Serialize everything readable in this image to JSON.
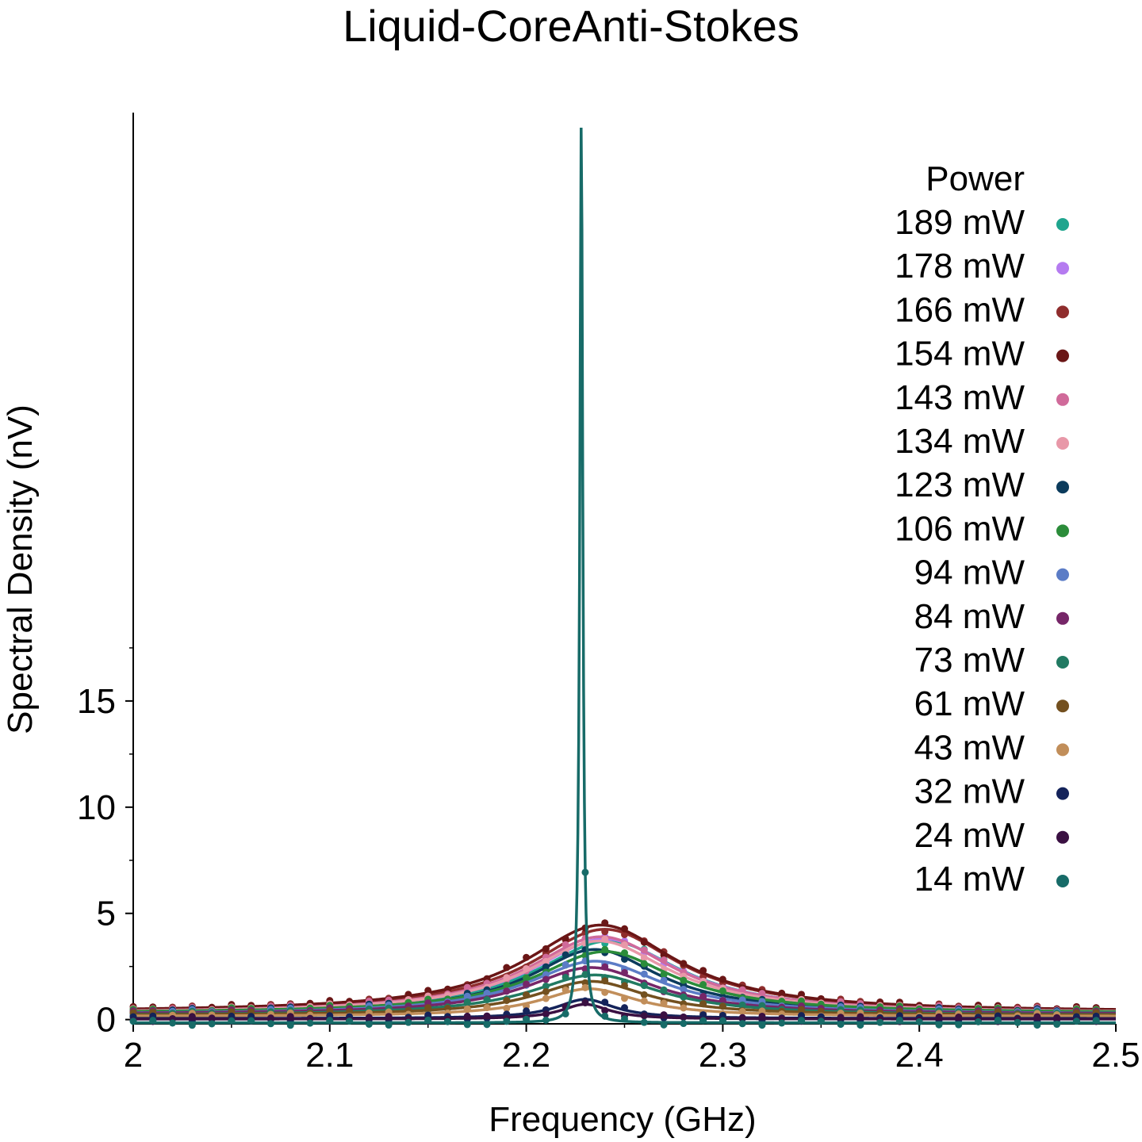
{
  "chart_data": {
    "type": "line",
    "title": "Liquid-CoreAnti-Stokes",
    "xlabel": "Frequency (GHz)",
    "ylabel": "Spectral Density (nV)",
    "xlim": [
      2.0,
      2.5
    ],
    "ylim": [
      -0.2,
      42.7
    ],
    "x_ticks": [
      2.0,
      2.1,
      2.2,
      2.3,
      2.4,
      2.5
    ],
    "x_tick_labels": [
      "2",
      "2.1",
      "2.2",
      "2.3",
      "2.4",
      "2.5"
    ],
    "y_ticks": [
      0,
      5,
      10,
      15
    ],
    "y_tick_labels": [
      "0",
      "5",
      "10",
      "15"
    ],
    "grid": false,
    "legend": {
      "title": "Power",
      "position": "right"
    },
    "series_model": "Lorentzian peak: y = baseline + amplitude / (1 + ((x - center) / half_width)^2); markers = measured samples, solid line = fit",
    "series": [
      {
        "name": "189 mW",
        "color": "#1fa58e",
        "center": 2.242,
        "amplitude": 3.4,
        "half_width": 0.045,
        "baseline": 0.3
      },
      {
        "name": "178 mW",
        "color": "#b57bf0",
        "center": 2.24,
        "amplitude": 3.5,
        "half_width": 0.045,
        "baseline": 0.3
      },
      {
        "name": "166 mW",
        "color": "#8f2d2d",
        "center": 2.24,
        "amplitude": 3.9,
        "half_width": 0.046,
        "baseline": 0.35
      },
      {
        "name": "154 mW",
        "color": "#6a1616",
        "center": 2.238,
        "amplitude": 4.1,
        "half_width": 0.047,
        "baseline": 0.35
      },
      {
        "name": "143 mW",
        "color": "#d06a9a",
        "center": 2.238,
        "amplitude": 3.6,
        "half_width": 0.045,
        "baseline": 0.3
      },
      {
        "name": "134 mW",
        "color": "#e898a8",
        "center": 2.237,
        "amplitude": 3.4,
        "half_width": 0.044,
        "baseline": 0.3
      },
      {
        "name": "123 mW",
        "color": "#0b3b5c",
        "center": 2.235,
        "amplitude": 3.0,
        "half_width": 0.04,
        "baseline": 0.3
      },
      {
        "name": "106 mW",
        "color": "#2b8c3a",
        "center": 2.24,
        "amplitude": 2.9,
        "half_width": 0.043,
        "baseline": 0.3
      },
      {
        "name": "94 mW",
        "color": "#5b7cc6",
        "center": 2.235,
        "amplitude": 2.5,
        "half_width": 0.042,
        "baseline": 0.25
      },
      {
        "name": "84 mW",
        "color": "#762668",
        "center": 2.233,
        "amplitude": 2.2,
        "half_width": 0.04,
        "baseline": 0.25
      },
      {
        "name": "73 mW",
        "color": "#217a62",
        "center": 2.235,
        "amplitude": 1.9,
        "half_width": 0.04,
        "baseline": 0.2
      },
      {
        "name": "61 mW",
        "color": "#73501f",
        "center": 2.233,
        "amplitude": 1.6,
        "half_width": 0.035,
        "baseline": 0.2
      },
      {
        "name": "43 mW",
        "color": "#c18e5a",
        "center": 2.232,
        "amplitude": 1.3,
        "half_width": 0.03,
        "baseline": 0.15
      },
      {
        "name": "32 mW",
        "color": "#14235a",
        "center": 2.23,
        "amplitude": 0.9,
        "half_width": 0.018,
        "baseline": 0.05
      },
      {
        "name": "24 mW",
        "color": "#3a1042",
        "center": 2.23,
        "amplitude": 0.7,
        "half_width": 0.015,
        "baseline": 0.02
      },
      {
        "name": "14 mW",
        "color": "#176b68",
        "center": 2.228,
        "amplitude": 42.5,
        "half_width": 0.0009,
        "baseline": -0.15
      }
    ]
  }
}
